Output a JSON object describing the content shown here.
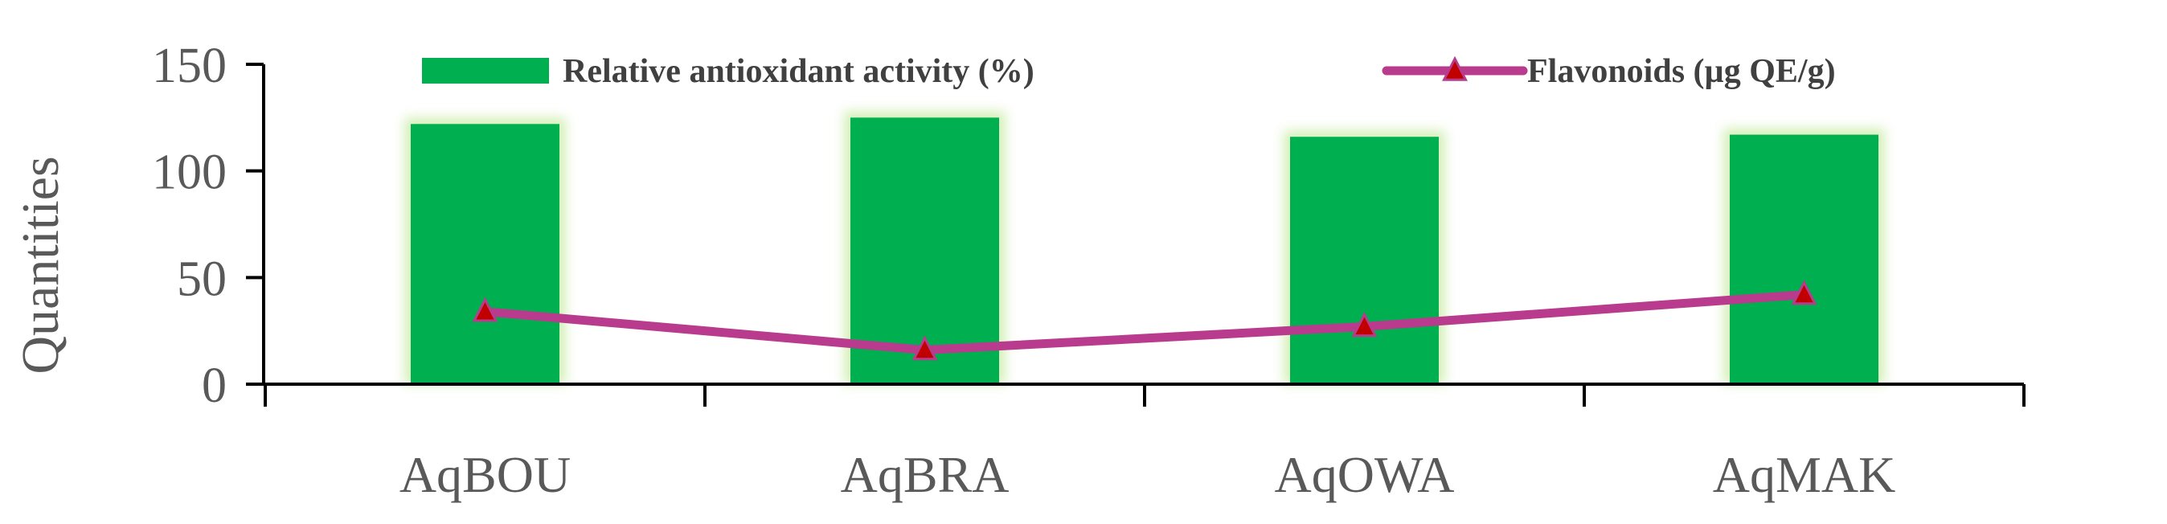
{
  "chart_data": {
    "type": "bar",
    "categories": [
      "AqBOU",
      "AqBRA",
      "AqOWA",
      "AqMAK"
    ],
    "series": [
      {
        "name": "Relative antioxidant activity (%)",
        "kind": "bar",
        "values": [
          122,
          125,
          116,
          117
        ]
      },
      {
        "name": "Flavonoids (µg QE/g)",
        "kind": "line",
        "marker": "triangle",
        "values": [
          34,
          16,
          27,
          42
        ]
      }
    ],
    "ylabel": "Quantities",
    "xlabel": "",
    "ylim": [
      0,
      150
    ],
    "yticks": [
      0,
      50,
      100,
      150
    ],
    "grid": false,
    "legend": "top",
    "colors": {
      "bar": "#00b050",
      "bar_glow": "#d4f0b8",
      "line": "#b83b8e",
      "marker": "#c00000",
      "axis": "#000000"
    }
  }
}
